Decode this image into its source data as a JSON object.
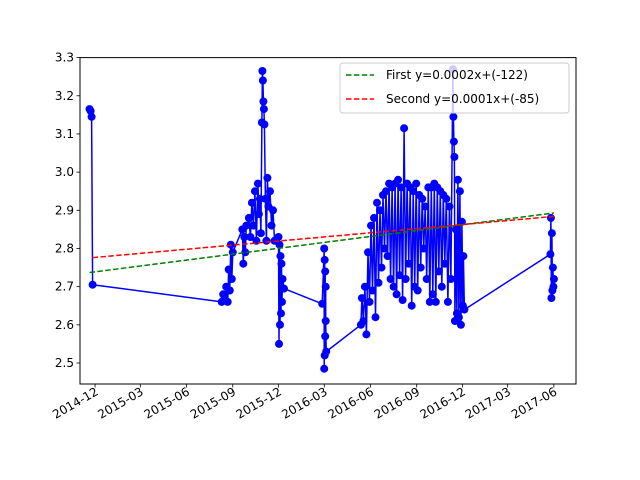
{
  "chart_data": {
    "type": "line",
    "title": "",
    "xlabel": "",
    "ylabel": "",
    "xlim": [
      "2014-11-01",
      "2017-07-15"
    ],
    "ylim": [
      2.445,
      3.3
    ],
    "grid": false,
    "legend_position": "top-right",
    "x_ticks": [
      "2014-12",
      "2015-03",
      "2015-06",
      "2015-09",
      "2015-12",
      "2016-03",
      "2016-06",
      "2016-09",
      "2016-12",
      "2017-03",
      "2017-06"
    ],
    "y_ticks": [
      "2.5",
      "2.6",
      "2.7",
      "2.8",
      "2.9",
      "3.0",
      "3.1",
      "3.2",
      "3.3"
    ],
    "colors": {
      "data": "#0000ff",
      "first": "#008000",
      "second": "#ff0000"
    },
    "series": [
      {
        "name": "",
        "style": "line-markers",
        "points": [
          [
            "2014-11-20",
            3.165
          ],
          [
            "2014-11-22",
            3.16
          ],
          [
            "2014-11-24",
            3.145
          ],
          [
            "2014-11-26",
            2.705
          ],
          [
            "2015-08-10",
            2.66
          ],
          [
            "2015-08-13",
            2.68
          ],
          [
            "2015-08-16",
            2.67
          ],
          [
            "2015-08-19",
            2.7
          ],
          [
            "2015-08-22",
            2.66
          ],
          [
            "2015-08-24",
            2.745
          ],
          [
            "2015-08-26",
            2.69
          ],
          [
            "2015-08-28",
            2.81
          ],
          [
            "2015-08-30",
            2.72
          ],
          [
            "2015-09-01",
            2.79
          ],
          [
            "2015-09-20",
            2.85
          ],
          [
            "2015-09-22",
            2.76
          ],
          [
            "2015-09-24",
            2.83
          ],
          [
            "2015-09-26",
            2.79
          ],
          [
            "2015-09-28",
            2.86
          ],
          [
            "2015-10-03",
            2.88
          ],
          [
            "2015-10-06",
            2.83
          ],
          [
            "2015-10-09",
            2.92
          ],
          [
            "2015-10-12",
            2.86
          ],
          [
            "2015-10-15",
            2.95
          ],
          [
            "2015-10-18",
            2.82
          ],
          [
            "2015-10-21",
            2.97
          ],
          [
            "2015-10-23",
            2.89
          ],
          [
            "2015-10-25",
            2.93
          ],
          [
            "2015-10-27",
            2.84
          ],
          [
            "2015-10-29",
            3.13
          ],
          [
            "2015-10-30",
            3.265
          ],
          [
            "2015-10-31",
            3.24
          ],
          [
            "2015-11-01",
            3.185
          ],
          [
            "2015-11-02",
            3.165
          ],
          [
            "2015-11-03",
            3.125
          ],
          [
            "2015-11-05",
            2.93
          ],
          [
            "2015-11-07",
            2.82
          ],
          [
            "2015-11-09",
            2.985
          ],
          [
            "2015-11-11",
            2.91
          ],
          [
            "2015-11-14",
            2.95
          ],
          [
            "2015-11-17",
            2.86
          ],
          [
            "2015-11-20",
            2.9
          ],
          [
            "2015-11-23",
            2.82
          ],
          [
            "2015-12-01",
            2.83
          ],
          [
            "2015-12-02",
            2.55
          ],
          [
            "2015-12-03",
            2.81
          ],
          [
            "2015-12-04",
            2.6
          ],
          [
            "2015-12-05",
            2.78
          ],
          [
            "2015-12-06",
            2.63
          ],
          [
            "2015-12-07",
            2.76
          ],
          [
            "2015-12-08",
            2.66
          ],
          [
            "2015-12-09",
            2.72
          ],
          [
            "2015-12-12",
            2.695
          ],
          [
            "2016-02-26",
            2.655
          ],
          [
            "2016-03-01",
            2.8
          ],
          [
            "2016-03-01",
            2.485
          ],
          [
            "2016-03-02",
            2.77
          ],
          [
            "2016-03-02",
            2.52
          ],
          [
            "2016-03-03",
            2.74
          ],
          [
            "2016-03-03",
            2.57
          ],
          [
            "2016-03-04",
            2.7
          ],
          [
            "2016-03-04",
            2.61
          ],
          [
            "2016-03-05",
            2.53
          ],
          [
            "2016-05-13",
            2.6
          ],
          [
            "2016-05-15",
            2.67
          ],
          [
            "2016-05-18",
            2.61
          ],
          [
            "2016-05-21",
            2.7
          ],
          [
            "2016-05-24",
            2.575
          ],
          [
            "2016-05-27",
            2.79
          ],
          [
            "2016-05-30",
            2.66
          ],
          [
            "2016-06-02",
            2.86
          ],
          [
            "2016-06-05",
            2.69
          ],
          [
            "2016-06-08",
            2.88
          ],
          [
            "2016-06-11",
            2.62
          ],
          [
            "2016-06-14",
            2.92
          ],
          [
            "2016-06-17",
            2.71
          ],
          [
            "2016-06-20",
            2.9
          ],
          [
            "2016-06-23",
            2.75
          ],
          [
            "2016-06-26",
            2.94
          ],
          [
            "2016-06-29",
            2.8
          ],
          [
            "2016-07-02",
            2.95
          ],
          [
            "2016-07-05",
            2.78
          ],
          [
            "2016-07-08",
            2.97
          ],
          [
            "2016-07-11",
            2.72
          ],
          [
            "2016-07-14",
            2.96
          ],
          [
            "2016-07-17",
            2.7
          ],
          [
            "2016-07-20",
            2.97
          ],
          [
            "2016-07-23",
            2.68
          ],
          [
            "2016-07-26",
            2.98
          ],
          [
            "2016-07-29",
            2.73
          ],
          [
            "2016-08-01",
            2.96
          ],
          [
            "2016-08-04",
            2.665
          ],
          [
            "2016-08-07",
            3.115
          ],
          [
            "2016-08-10",
            2.72
          ],
          [
            "2016-08-13",
            2.97
          ],
          [
            "2016-08-16",
            2.76
          ],
          [
            "2016-08-19",
            2.96
          ],
          [
            "2016-08-22",
            2.65
          ],
          [
            "2016-08-25",
            2.95
          ],
          [
            "2016-08-28",
            2.7
          ],
          [
            "2016-08-31",
            2.97
          ],
          [
            "2016-09-03",
            2.69
          ],
          [
            "2016-09-06",
            2.94
          ],
          [
            "2016-09-09",
            2.75
          ],
          [
            "2016-09-12",
            2.93
          ],
          [
            "2016-09-15",
            2.8
          ],
          [
            "2016-09-18",
            2.91
          ],
          [
            "2016-09-21",
            2.72
          ],
          [
            "2016-09-24",
            2.96
          ],
          [
            "2016-09-27",
            2.66
          ],
          [
            "2016-09-30",
            2.96
          ],
          [
            "2016-10-03",
            2.68
          ],
          [
            "2016-10-06",
            2.97
          ],
          [
            "2016-10-09",
            2.66
          ],
          [
            "2016-10-12",
            2.96
          ],
          [
            "2016-10-15",
            2.74
          ],
          [
            "2016-10-18",
            2.95
          ],
          [
            "2016-10-21",
            2.7
          ],
          [
            "2016-10-24",
            2.94
          ],
          [
            "2016-10-27",
            2.76
          ],
          [
            "2016-10-30",
            2.93
          ],
          [
            "2016-11-02",
            2.66
          ],
          [
            "2016-11-05",
            2.91
          ],
          [
            "2016-11-08",
            2.72
          ],
          [
            "2016-11-12",
            3.27
          ],
          [
            "2016-11-13",
            3.145
          ],
          [
            "2016-11-14",
            3.08
          ],
          [
            "2016-11-15",
            3.04
          ],
          [
            "2016-11-16",
            2.61
          ],
          [
            "2016-11-18",
            2.85
          ],
          [
            "2016-11-20",
            2.63
          ],
          [
            "2016-11-22",
            2.98
          ],
          [
            "2016-11-24",
            2.62
          ],
          [
            "2016-11-26",
            2.95
          ],
          [
            "2016-11-28",
            2.6
          ],
          [
            "2016-11-30",
            2.87
          ],
          [
            "2016-12-02",
            2.65
          ],
          [
            "2016-12-03",
            2.78
          ],
          [
            "2016-12-05",
            2.64
          ],
          [
            "2017-05-25",
            2.785
          ],
          [
            "2017-05-26",
            2.88
          ],
          [
            "2017-05-27",
            2.67
          ],
          [
            "2017-05-28",
            2.84
          ],
          [
            "2017-05-29",
            2.69
          ],
          [
            "2017-05-30",
            2.75
          ],
          [
            "2017-05-31",
            2.7
          ],
          [
            "2017-06-01",
            2.72
          ]
        ]
      },
      {
        "name": "First y=0.0002x+(-122)",
        "style": "dashed",
        "points": [
          [
            "2014-11-20",
            2.737
          ],
          [
            "2017-06-01",
            2.893
          ]
        ]
      },
      {
        "name": "Second y=0.0001x+(-85)",
        "style": "dashed",
        "points": [
          [
            "2014-11-26",
            2.776
          ],
          [
            "2017-06-01",
            2.884
          ]
        ]
      }
    ],
    "legend": [
      {
        "label": "First y=0.0002x+(-122)",
        "color": "#008000"
      },
      {
        "label": "Second y=0.0001x+(-85)",
        "color": "#ff0000"
      }
    ]
  }
}
